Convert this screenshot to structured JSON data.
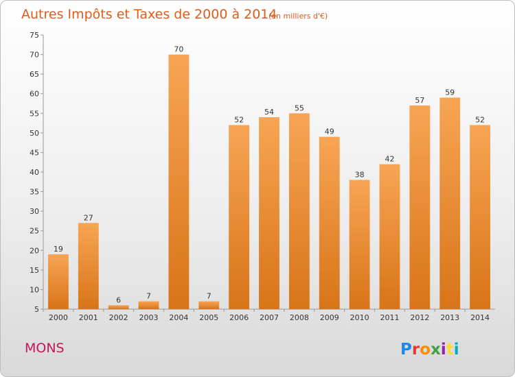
{
  "chart_data": {
    "type": "bar",
    "title": "Autres Impôts et Taxes de 2000 à 2014",
    "subtitle": "(en milliers d'€)",
    "categories": [
      "2000",
      "2001",
      "2002",
      "2003",
      "2004",
      "2005",
      "2006",
      "2007",
      "2008",
      "2009",
      "2010",
      "2011",
      "2012",
      "2013",
      "2014"
    ],
    "values": [
      19,
      27,
      6,
      7,
      70,
      7,
      52,
      54,
      55,
      49,
      38,
      42,
      57,
      59,
      52
    ],
    "ylim": [
      5,
      75
    ],
    "yticks": [
      5,
      10,
      15,
      20,
      25,
      30,
      35,
      40,
      45,
      50,
      55,
      60,
      65,
      70,
      75
    ],
    "grid": false,
    "colors": {
      "bar_light": "#f7a554",
      "bar_dark": "#d87418",
      "title": "#e05a1a",
      "place": "#c0185a"
    }
  },
  "place_name": "MONS",
  "logo": {
    "text": "Proxiti",
    "colors": [
      "#1e88e5",
      "#e53935",
      "#fb8c00",
      "#43a047",
      "#8e24aa",
      "#fdd835",
      "#00acc1"
    ]
  }
}
